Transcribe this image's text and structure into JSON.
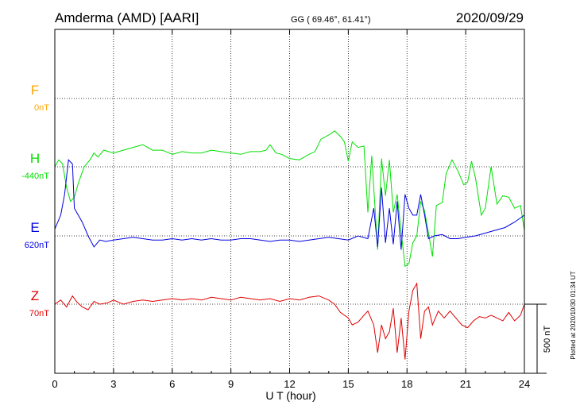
{
  "header": {
    "station": "Amderma (AMD)  [AARI]",
    "coords": "GG ( 69.46°,  61.41°)",
    "date": "2020/09/29"
  },
  "side_note": "Plotted at 2020/10/30 01:34 UT",
  "scale_bar": {
    "label": "500 nT",
    "value_nT": 500
  },
  "colors": {
    "F": "#ffa500",
    "H": "#00e000",
    "E": "#0000e0",
    "Z": "#e00000",
    "axis": "#000000",
    "grid": "#000000"
  },
  "chart_data": {
    "type": "line",
    "xlabel": "U T (hour)",
    "ylabel": "",
    "xlim": [
      0,
      24
    ],
    "x_ticks": [
      0,
      3,
      6,
      9,
      12,
      15,
      18,
      21,
      24
    ],
    "grid": "dotted",
    "series": [
      {
        "name": "F",
        "offset_label": "0nT",
        "baseline": 0,
        "x": [],
        "values": []
      },
      {
        "name": "H",
        "offset_label": "-440nT",
        "baseline": 0,
        "x": [
          0,
          0.2,
          0.4,
          0.6,
          0.8,
          1.0,
          1.2,
          1.5,
          1.8,
          2.0,
          2.2,
          2.5,
          3,
          3.5,
          4,
          4.5,
          5,
          5.5,
          6,
          6.5,
          7,
          7.5,
          8,
          8.5,
          9,
          9.5,
          10,
          10.5,
          10.8,
          11,
          11.3,
          11.6,
          12,
          12.5,
          13,
          13.3,
          13.6,
          14,
          14.3,
          14.6,
          14.8,
          15,
          15.2,
          15.5,
          15.8,
          16,
          16.2,
          16.5,
          16.7,
          16.9,
          17.1,
          17.3,
          17.5,
          17.7,
          17.9,
          18.1,
          18.3,
          18.5,
          18.7,
          18.9,
          19.1,
          19.3,
          19.5,
          19.8,
          20,
          20.3,
          20.6,
          20.9,
          21.1,
          21.3,
          21.5,
          21.8,
          22,
          22.3,
          22.6,
          22.9,
          23.2,
          23.5,
          23.8,
          24
        ],
        "values": [
          0,
          50,
          20,
          -150,
          -250,
          -220,
          -120,
          0,
          50,
          100,
          70,
          120,
          100,
          120,
          140,
          160,
          120,
          120,
          90,
          110,
          100,
          100,
          120,
          110,
          100,
          90,
          110,
          110,
          120,
          160,
          100,
          90,
          60,
          50,
          90,
          110,
          200,
          230,
          260,
          220,
          180,
          40,
          180,
          140,
          150,
          -330,
          80,
          -600,
          60,
          -210,
          50,
          -330,
          -200,
          -470,
          -720,
          -700,
          -550,
          -500,
          -250,
          -320,
          -480,
          -650,
          -280,
          -260,
          -50,
          50,
          -30,
          -130,
          -110,
          40,
          -80,
          -350,
          -300,
          0,
          -270,
          -210,
          -220,
          -300,
          -280,
          -460
        ]
      },
      {
        "name": "E",
        "offset_label": "620nT",
        "baseline": 0,
        "x": [
          0,
          0.3,
          0.5,
          0.7,
          0.9,
          1.0,
          1.2,
          1.4,
          1.7,
          2.0,
          2.3,
          2.6,
          3,
          3.5,
          4,
          4.5,
          5,
          5.5,
          6,
          6.5,
          7,
          7.5,
          8,
          8.5,
          9,
          9.5,
          10,
          10.5,
          11,
          11.5,
          12,
          12.5,
          13,
          13.5,
          14,
          14.5,
          15,
          15.5,
          16,
          16.3,
          16.5,
          16.7,
          16.9,
          17.1,
          17.3,
          17.5,
          17.7,
          17.9,
          18.1,
          18.3,
          18.5,
          18.7,
          18.9,
          19.1,
          19.4,
          19.8,
          20.2,
          20.6,
          21,
          21.5,
          22,
          22.5,
          23,
          23.5,
          24
        ],
        "values": [
          50,
          150,
          300,
          550,
          520,
          200,
          150,
          100,
          0,
          -80,
          -30,
          -40,
          -30,
          -20,
          -10,
          -20,
          -30,
          -30,
          -20,
          -30,
          -20,
          -30,
          -20,
          -30,
          -30,
          -20,
          -20,
          -30,
          -40,
          -30,
          -30,
          -40,
          -30,
          -20,
          -10,
          -20,
          -30,
          0,
          -20,
          200,
          -80,
          350,
          -50,
          200,
          -60,
          250,
          -100,
          300,
          200,
          150,
          150,
          300,
          150,
          -20,
          0,
          10,
          -20,
          -20,
          -10,
          0,
          20,
          40,
          60,
          100,
          150
        ]
      },
      {
        "name": "Z",
        "offset_label": "70nT",
        "baseline": 0,
        "x": [
          0,
          0.3,
          0.6,
          0.9,
          1.1,
          1.4,
          1.7,
          2.0,
          2.3,
          2.7,
          3,
          3.5,
          4,
          4.5,
          5,
          5.5,
          6,
          6.5,
          7,
          7.5,
          8,
          8.5,
          9,
          9.5,
          10,
          10.5,
          11,
          11.5,
          12,
          12.5,
          13,
          13.5,
          14,
          14.3,
          14.6,
          15,
          15.2,
          15.5,
          15.8,
          16,
          16.3,
          16.5,
          16.7,
          16.9,
          17.1,
          17.3,
          17.5,
          17.7,
          17.9,
          18.1,
          18.3,
          18.5,
          18.7,
          18.9,
          19.1,
          19.3,
          19.6,
          19.9,
          20.2,
          20.5,
          20.8,
          21.1,
          21.4,
          21.7,
          22,
          22.3,
          22.6,
          22.9,
          23.2,
          23.5,
          23.8,
          24
        ],
        "values": [
          0,
          30,
          -20,
          60,
          20,
          -20,
          -40,
          20,
          0,
          10,
          30,
          0,
          20,
          30,
          20,
          30,
          40,
          30,
          40,
          30,
          50,
          40,
          30,
          50,
          40,
          30,
          40,
          20,
          40,
          30,
          50,
          60,
          30,
          0,
          -60,
          -100,
          -150,
          -130,
          -80,
          -50,
          -150,
          -350,
          -150,
          -250,
          -200,
          -30,
          -350,
          -100,
          -400,
          -50,
          100,
          150,
          -250,
          -50,
          -20,
          -150,
          -50,
          -100,
          -50,
          -100,
          -150,
          -170,
          -120,
          -90,
          -100,
          -80,
          -100,
          -120,
          -60,
          -120,
          -80,
          0
        ]
      }
    ]
  }
}
